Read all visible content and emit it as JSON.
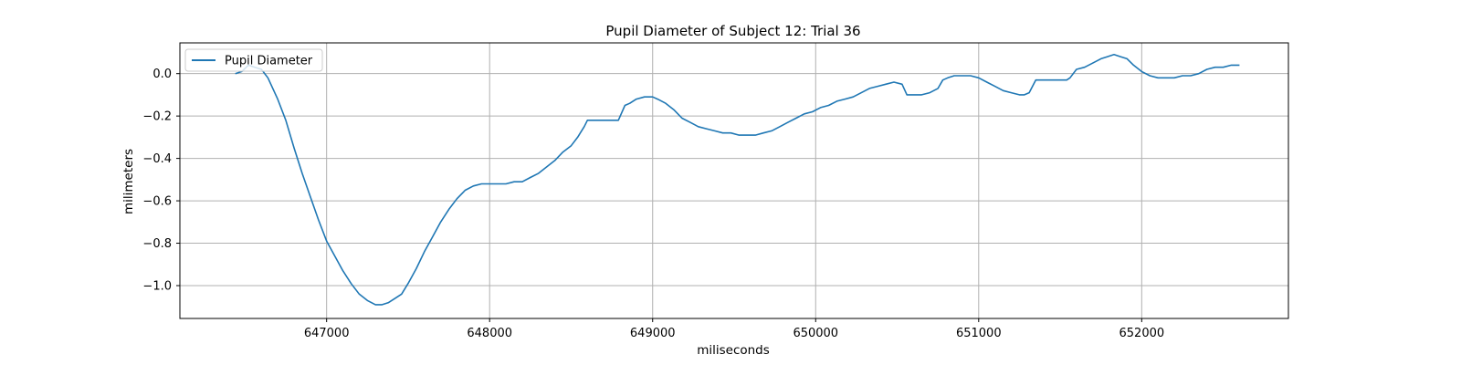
{
  "chart_data": {
    "type": "line",
    "title": "Pupil Diameter of Subject 12: Trial 36",
    "xlabel": "miliseconds",
    "ylabel": "milimeters",
    "xlim": [
      646100,
      652900
    ],
    "ylim": [
      -1.155,
      0.145
    ],
    "xticks": [
      647000,
      648000,
      649000,
      650000,
      651000,
      652000
    ],
    "xtick_labels": [
      "647000",
      "648000",
      "649000",
      "650000",
      "651000",
      "652000"
    ],
    "yticks": [
      0.0,
      -0.2,
      -0.4,
      -0.6,
      -0.8,
      -1.0
    ],
    "ytick_labels": [
      "0.0",
      "−0.2",
      "−0.4",
      "−0.6",
      "−0.8",
      "−1.0"
    ],
    "grid": true,
    "legend_position": "upper-left",
    "series": [
      {
        "name": "Pupil Diameter",
        "color": "#1f77b4",
        "x": [
          646440,
          646480,
          646520,
          646560,
          646600,
          646640,
          646700,
          646750,
          646800,
          646850,
          646900,
          646950,
          647000,
          647050,
          647100,
          647150,
          647200,
          647250,
          647300,
          647340,
          647380,
          647420,
          647460,
          647500,
          647550,
          647600,
          647650,
          647700,
          647750,
          647800,
          647850,
          647900,
          647950,
          648000,
          648050,
          648100,
          648150,
          648200,
          648250,
          648300,
          648350,
          648400,
          648450,
          648500,
          648540,
          648580,
          648600,
          648650,
          648700,
          648750,
          648790,
          648830,
          648860,
          648900,
          648950,
          649000,
          649030,
          649080,
          649130,
          649180,
          649230,
          649280,
          649330,
          649380,
          649430,
          649480,
          649530,
          649580,
          649630,
          649680,
          649730,
          649780,
          649830,
          649880,
          649930,
          649980,
          650030,
          650080,
          650130,
          650180,
          650230,
          650280,
          650330,
          650380,
          650430,
          650480,
          650530,
          650560,
          650600,
          650650,
          650700,
          650750,
          650780,
          650810,
          650850,
          650900,
          650950,
          651000,
          651050,
          651100,
          651150,
          651200,
          651250,
          651280,
          651310,
          651350,
          651400,
          651450,
          651500,
          651540,
          651560,
          651600,
          651650,
          651700,
          651750,
          651790,
          651830,
          651870,
          651910,
          651950,
          652000,
          652050,
          652100,
          652150,
          652200,
          652250,
          652300,
          652350,
          652400,
          652450,
          652500,
          652550,
          652600
        ],
        "y": [
          0.0,
          0.01,
          0.04,
          0.03,
          0.02,
          -0.02,
          -0.12,
          -0.22,
          -0.35,
          -0.47,
          -0.58,
          -0.69,
          -0.79,
          -0.86,
          -0.93,
          -0.99,
          -1.04,
          -1.07,
          -1.09,
          -1.09,
          -1.08,
          -1.06,
          -1.04,
          -0.99,
          -0.92,
          -0.84,
          -0.77,
          -0.7,
          -0.64,
          -0.59,
          -0.55,
          -0.53,
          -0.52,
          -0.52,
          -0.52,
          -0.52,
          -0.51,
          -0.51,
          -0.49,
          -0.47,
          -0.44,
          -0.41,
          -0.37,
          -0.34,
          -0.3,
          -0.25,
          -0.22,
          -0.22,
          -0.22,
          -0.22,
          -0.22,
          -0.15,
          -0.14,
          -0.12,
          -0.11,
          -0.11,
          -0.12,
          -0.14,
          -0.17,
          -0.21,
          -0.23,
          -0.25,
          -0.26,
          -0.27,
          -0.28,
          -0.28,
          -0.29,
          -0.29,
          -0.29,
          -0.28,
          -0.27,
          -0.25,
          -0.23,
          -0.21,
          -0.19,
          -0.18,
          -0.16,
          -0.15,
          -0.13,
          -0.12,
          -0.11,
          -0.09,
          -0.07,
          -0.06,
          -0.05,
          -0.04,
          -0.05,
          -0.1,
          -0.1,
          -0.1,
          -0.09,
          -0.07,
          -0.03,
          -0.02,
          -0.01,
          -0.01,
          -0.01,
          -0.02,
          -0.04,
          -0.06,
          -0.08,
          -0.09,
          -0.1,
          -0.1,
          -0.09,
          -0.03,
          -0.03,
          -0.03,
          -0.03,
          -0.03,
          -0.02,
          0.02,
          0.03,
          0.05,
          0.07,
          0.08,
          0.09,
          0.08,
          0.07,
          0.04,
          0.01,
          -0.01,
          -0.02,
          -0.02,
          -0.02,
          -0.01,
          -0.01,
          0.0,
          0.02,
          0.03,
          0.03,
          0.04,
          0.04
        ]
      }
    ]
  }
}
